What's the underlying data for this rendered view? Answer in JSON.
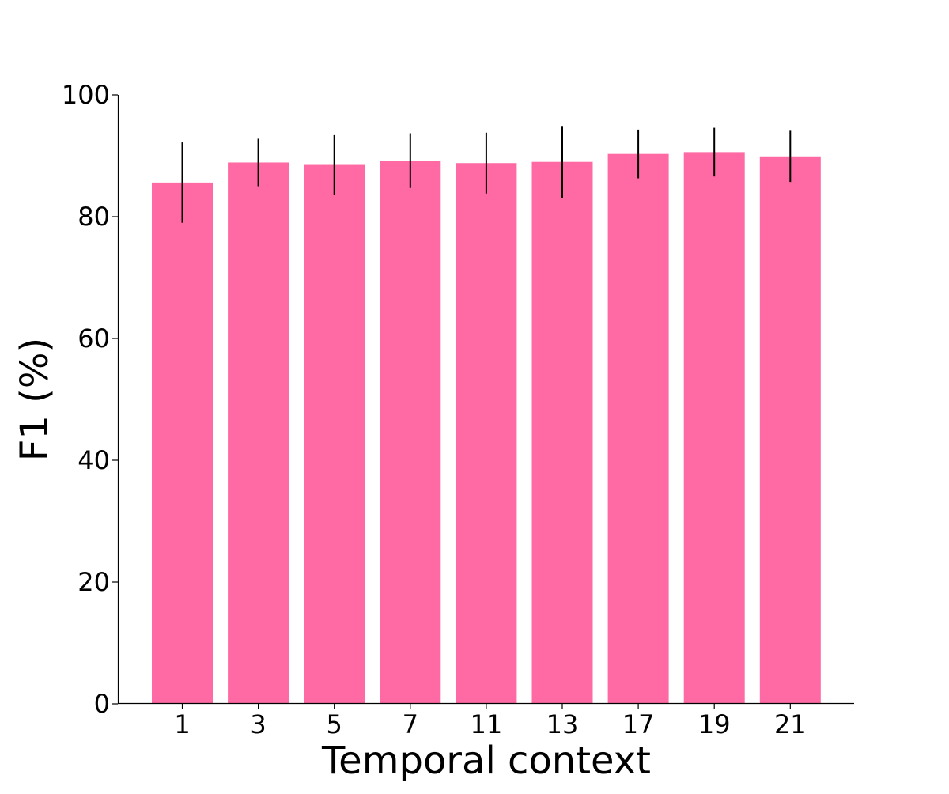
{
  "chart_data": {
    "type": "bar",
    "title": "",
    "xlabel": "Temporal context",
    "ylabel": "F1 (%)",
    "categories": [
      "1",
      "3",
      "5",
      "7",
      "11",
      "13",
      "17",
      "19",
      "21"
    ],
    "series": [
      {
        "values": [
          85.6,
          88.9,
          88.5,
          89.2,
          88.8,
          89.0,
          90.3,
          90.6,
          89.9
        ],
        "errors": [
          6.6,
          3.9,
          4.9,
          4.5,
          5.0,
          5.9,
          4.0,
          4.0,
          4.2
        ]
      }
    ],
    "ylim": [
      0,
      100
    ],
    "yticks": [
      0,
      20,
      40,
      60,
      80,
      100
    ],
    "grid": false,
    "legend": "none",
    "colors": {
      "bar": "#ff69a4",
      "error_bar": "#000000",
      "axis": "#000000"
    }
  }
}
